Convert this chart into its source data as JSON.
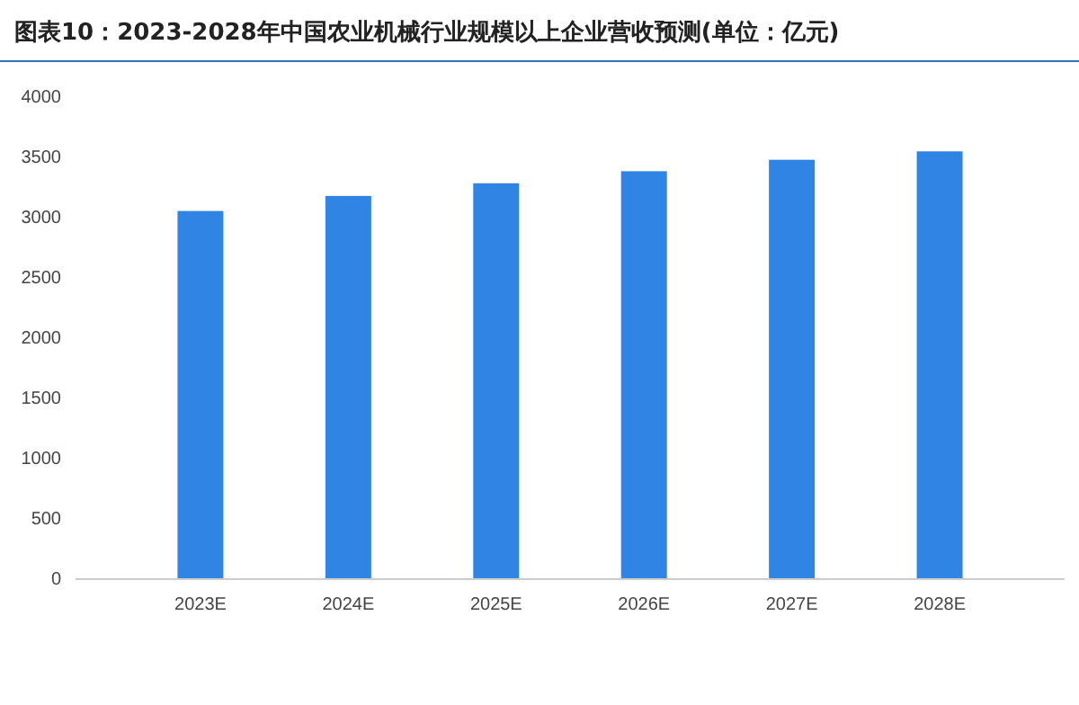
{
  "chart_data": {
    "type": "bar",
    "title": "图表10：2023-2028年中国农业机械行业规模以上企业营收预测(单位：亿元)",
    "categories": [
      "2023E",
      "2024E",
      "2025E",
      "2026E",
      "2027E",
      "2028E"
    ],
    "values": [
      3055,
      3180,
      3285,
      3385,
      3480,
      3550
    ],
    "color": "#2f84e4",
    "ylim": [
      0,
      4000
    ],
    "yticks": [
      0,
      500,
      1000,
      1500,
      2000,
      2500,
      3000,
      3500,
      4000
    ],
    "grid": false
  }
}
